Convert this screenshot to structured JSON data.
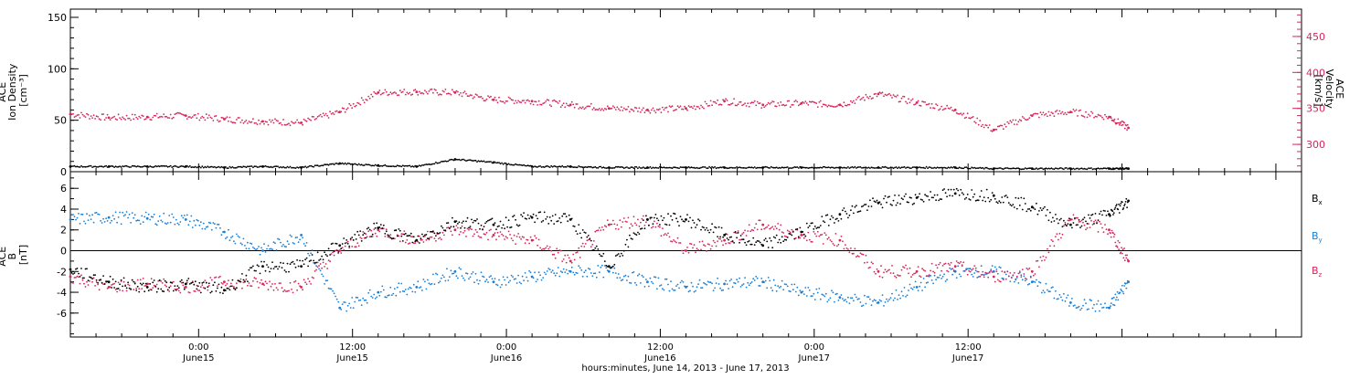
{
  "chart_data": [
    {
      "type": "scatter",
      "panel": "top",
      "ylabel_lines": [
        "ACE",
        "Ion Density",
        "[cm⁻³]"
      ],
      "ylim": [
        0,
        158
      ],
      "yticks": [
        0,
        50,
        100,
        150
      ],
      "ylabel_right_lines": [
        "ACE",
        "Velocity",
        "[km/s]"
      ],
      "ylim_right": [
        262,
        488
      ],
      "yticks_right": [
        300,
        350,
        400,
        450
      ],
      "color_density": "#000000",
      "color_velocity": "#d6275a",
      "series": [
        {
          "x": [
            0,
            3,
            6,
            9,
            12,
            15,
            18,
            21,
            24,
            27,
            30,
            33,
            36,
            39,
            42,
            45,
            48,
            51,
            54,
            57,
            60,
            63,
            66,
            69,
            72,
            75,
            78,
            81,
            82.5
          ],
          "values": [
            5,
            5,
            5,
            5,
            4,
            5,
            4,
            8,
            6,
            5,
            12,
            9,
            5,
            5,
            4,
            4,
            4,
            4,
            4,
            4,
            4,
            4,
            4,
            4,
            3,
            3,
            3,
            3,
            3
          ]
        },
        {
          "x": [
            0,
            3,
            6,
            9,
            12,
            15,
            18,
            21,
            24,
            27,
            30,
            33,
            36,
            39,
            42,
            45,
            48,
            51,
            54,
            57,
            60,
            63,
            66,
            69,
            72,
            75,
            78,
            81,
            82.5
          ],
          "values": [
            342,
            337,
            338,
            340,
            335,
            332,
            330,
            345,
            372,
            373,
            372,
            362,
            360,
            355,
            350,
            348,
            350,
            360,
            355,
            357,
            355,
            370,
            358,
            348,
            320,
            340,
            345,
            338,
            323
          ]
        }
      ]
    },
    {
      "type": "scatter",
      "panel": "bottom",
      "ylabel_lines": [
        "ACE",
        "B",
        "[nT]"
      ],
      "ylim": [
        -8.3,
        7.6
      ],
      "yticks": [
        -6,
        -4,
        -2,
        0,
        2,
        4,
        6
      ],
      "legend": [
        "Bx",
        "By",
        "Bz"
      ],
      "colors": [
        "#000000",
        "#1a7fd6",
        "#d6275a"
      ],
      "series": [
        {
          "name": "Bx",
          "x": [
            0,
            3,
            6,
            9,
            12,
            15,
            18,
            21,
            24,
            27,
            30,
            33,
            36,
            39,
            42,
            45,
            48,
            51,
            54,
            57,
            60,
            63,
            66,
            69,
            72,
            75,
            78,
            81,
            82.5
          ],
          "values": [
            -1.8,
            -3.0,
            -3.5,
            -3.2,
            -3.8,
            -1.5,
            -1.5,
            0.5,
            2.2,
            1.0,
            2.8,
            2.5,
            3.2,
            3.0,
            -1.5,
            3.0,
            3.0,
            1.5,
            0.5,
            1.8,
            3.5,
            4.6,
            5.1,
            5.5,
            5.3,
            4.2,
            2.5,
            3.5,
            4.8
          ]
        },
        {
          "name": "By",
          "x": [
            0,
            3,
            6,
            9,
            12,
            15,
            18,
            21,
            24,
            27,
            30,
            33,
            36,
            39,
            42,
            45,
            48,
            51,
            54,
            57,
            60,
            63,
            66,
            69,
            72,
            75,
            78,
            81,
            82.5
          ],
          "values": [
            3.0,
            3.2,
            3.1,
            3.0,
            1.8,
            0.0,
            1.5,
            -5.5,
            -4.0,
            -3.5,
            -2.0,
            -3.0,
            -2.5,
            -2.0,
            -2.0,
            -3.0,
            -3.5,
            -3.2,
            -3.0,
            -4.0,
            -4.5,
            -5.0,
            -3.5,
            -2.0,
            -2.0,
            -3.0,
            -5.0,
            -5.5,
            -3.0
          ]
        },
        {
          "name": "Bz",
          "x": [
            0,
            3,
            6,
            9,
            12,
            15,
            18,
            21,
            24,
            27,
            30,
            33,
            36,
            39,
            42,
            45,
            48,
            51,
            54,
            57,
            60,
            63,
            66,
            69,
            72,
            75,
            78,
            81,
            82.5
          ],
          "values": [
            -2.5,
            -3.5,
            -3.2,
            -3.5,
            -3.0,
            -3.2,
            -3.5,
            0.0,
            2.0,
            1.0,
            2.0,
            1.5,
            1.0,
            -1.0,
            2.5,
            3.0,
            0.0,
            1.0,
            2.5,
            1.5,
            1.0,
            -2.0,
            -2.0,
            -1.5,
            -2.5,
            -2.0,
            3.0,
            2.0,
            -1.0
          ]
        }
      ]
    },
    {
      "type": "time_axis",
      "xlim_hours": [
        0,
        96
      ],
      "xtick_hours": [
        0,
        12,
        24,
        36,
        48,
        60,
        72,
        84,
        96
      ],
      "tick_labels": [
        {
          "hour": 10,
          "time": "0:00",
          "date": "June15"
        },
        {
          "hour": 22,
          "time": "12:00",
          "date": "June15"
        },
        {
          "hour": 34,
          "time": "0:00",
          "date": "June16"
        },
        {
          "hour": 46,
          "time": "12:00",
          "date": "June16"
        },
        {
          "hour": 58,
          "time": "0:00",
          "date": "June17"
        },
        {
          "hour": 70,
          "time": "12:00",
          "date": "June17"
        }
      ],
      "xlabel": "hours:minutes, June 14, 2013 - June 17, 2013"
    }
  ]
}
